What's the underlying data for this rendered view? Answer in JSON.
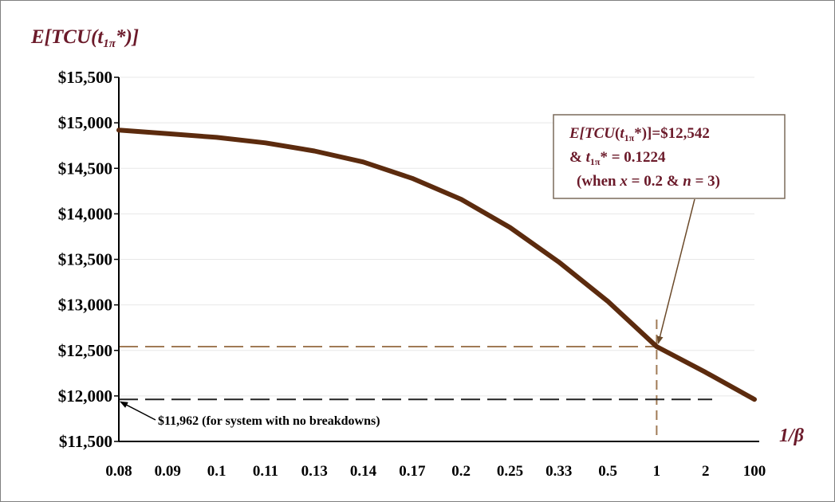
{
  "chart_data": {
    "type": "line",
    "title_parts": [
      "E[",
      "TCU",
      "(",
      "t",
      "1π",
      "*)]"
    ],
    "xlabel": "1/β",
    "categories": [
      "0.08",
      "0.09",
      "0.1",
      "0.11",
      "0.13",
      "0.14",
      "0.17",
      "0.2",
      "0.25",
      "0.33",
      "0.5",
      "1",
      "2",
      "100"
    ],
    "series": [
      {
        "name": "E[TCU(t1π*)]",
        "values": [
          14920,
          14880,
          14840,
          14780,
          14690,
          14570,
          14390,
          14160,
          13850,
          13470,
          13040,
          12542,
          12260,
          11962
        ]
      }
    ],
    "ylim": [
      11500,
      15500
    ],
    "yticks": [
      11500,
      12000,
      12500,
      13000,
      13500,
      14000,
      14500,
      15000,
      15500
    ],
    "ytick_labels": [
      "$11,500",
      "$12,000",
      "$12,500",
      "$13,000",
      "$13,500",
      "$14,000",
      "$14,500",
      "$15,000",
      "$15,500"
    ],
    "reference_lines": [
      {
        "value": 12542,
        "label": ""
      },
      {
        "value": 11962,
        "label": "$11,962 (for system with no  breakdowns)"
      }
    ],
    "highlight_category": "1",
    "annotation": {
      "line1_parts": [
        "E[",
        "TCU",
        "(",
        "t",
        "1π",
        "*)]=$12,542"
      ],
      "line2_parts": [
        "& ",
        "t",
        "1π",
        "* = 0.1224"
      ],
      "line3_parts": [
        "(when ",
        "x",
        " = 0.2 & ",
        "n",
        " = 3)"
      ]
    },
    "line_color": "#5c2b0e",
    "grid": true
  }
}
